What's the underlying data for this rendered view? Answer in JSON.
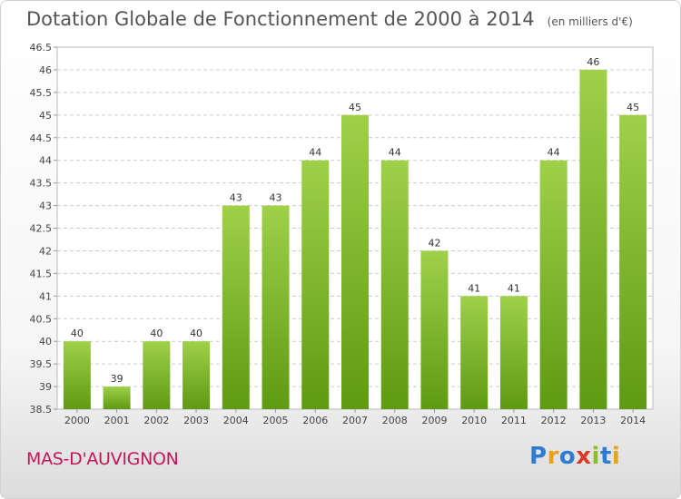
{
  "header": {
    "title": "Dotation Globale de Fonctionnement de 2000 à 2014",
    "subtitle": "(en milliers d'€)"
  },
  "footer": {
    "commune": "MAS-D'AUVIGNON",
    "logo_text": "Proxiti",
    "logo_colors": [
      "#2e7bd1",
      "#e8a21b",
      "#2e7bd1",
      "#d93a2b",
      "#8bbf2a",
      "#2e7bd1",
      "#e8a21b"
    ]
  },
  "chart_data": {
    "type": "bar",
    "title": "Dotation Globale de Fonctionnement de 2000 à 2014",
    "subtitle": "(en milliers d'€)",
    "categories": [
      "2000",
      "2001",
      "2002",
      "2003",
      "2004",
      "2005",
      "2006",
      "2007",
      "2008",
      "2009",
      "2010",
      "2011",
      "2012",
      "2013",
      "2014"
    ],
    "values": [
      40,
      39,
      40,
      40,
      43,
      43,
      44,
      45,
      44,
      42,
      41,
      41,
      44,
      46,
      45
    ],
    "data_labels": [
      "40",
      "39",
      "40",
      "40",
      "43",
      "43",
      "44",
      "45",
      "44",
      "42",
      "41",
      "41",
      "44",
      "46",
      "45"
    ],
    "ylim": [
      38.5,
      46.5
    ],
    "yticks": [
      "38.5",
      "39",
      "39.5",
      "40",
      "40.5",
      "41",
      "41.5",
      "42",
      "42.5",
      "43",
      "43.5",
      "44",
      "44.5",
      "45",
      "45.5",
      "46",
      "46.5"
    ],
    "xlabel": "",
    "ylabel": "",
    "grid": true,
    "bar_color_top": "#9fd04a",
    "bar_color_bottom": "#5e9a12"
  }
}
